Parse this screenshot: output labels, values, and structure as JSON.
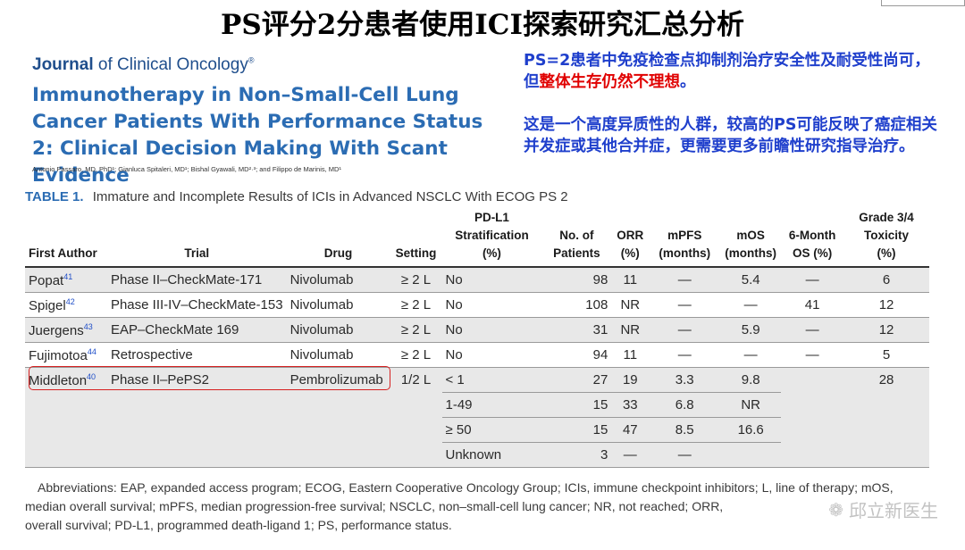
{
  "slide_title": "PS评分2分患者使用ICI探索研究汇总分析",
  "journal": {
    "name_part1": "Journal",
    "name_part2": "of Clinical Oncology",
    "mark": "®"
  },
  "paper_title": "Immunotherapy in Non–Small-Cell Lung Cancer Patients With Performance Status 2: Clinical Decision Making With Scant Evidence",
  "authors": "Antonio Passaro, MD, PhD¹; Gianluca Spitaleri, MD¹; Bishal Gyawali, MD²·³; and Filippo de Marinis, MD¹",
  "note1": {
    "part1": "PS=2患者中免疫检查点抑制剂治疗安全性及耐受性尚可，但",
    "highlight": "整体生存仍然不理想",
    "end": "。"
  },
  "note2": "这是一个高度异质性的人群，较高的PS可能反映了癌症相关并发症或其他合并症，更需要更多前瞻性研究指导治疗。",
  "table": {
    "caption_label": "TABLE 1.",
    "caption": "Immature and Incomplete Results of ICIs in Advanced NSCLC With ECOG PS 2",
    "headers": {
      "author": "First Author",
      "trial": "Trial",
      "drug": "Drug",
      "setting": "Setting",
      "pdl1_1": "PD-L1",
      "pdl1_2": "Stratification",
      "pdl1_3": "(%)",
      "patients_1": "No. of",
      "patients_2": "Patients",
      "orr_1": "ORR",
      "orr_2": "(%)",
      "mpfs_1": "mPFS",
      "mpfs_2": "(months)",
      "mos_1": "mOS",
      "mos_2": "(months)",
      "os6_1": "6-Month",
      "os6_2": "OS (%)",
      "tox_1": "Grade 3/4",
      "tox_2": "Toxicity",
      "tox_3": "(%)"
    },
    "rows": [
      {
        "author": "Popat",
        "ref": "41",
        "trial": "Phase II–CheckMate-171",
        "drug": "Nivolumab",
        "setting": "≥ 2 L",
        "pdl1": "No",
        "patients": "98",
        "orr": "11",
        "mpfs": "—",
        "mos": "5.4",
        "os6": "—",
        "tox": "6"
      },
      {
        "author": "Spigel",
        "ref": "42",
        "trial": "Phase III-IV–CheckMate-153",
        "drug": "Nivolumab",
        "setting": "≥ 2 L",
        "pdl1": "No",
        "patients": "108",
        "orr": "NR",
        "mpfs": "—",
        "mos": "—",
        "os6": "41",
        "tox": "12"
      },
      {
        "author": "Juergens",
        "ref": "43",
        "trial": "EAP–CheckMate 169",
        "drug": "Nivolumab",
        "setting": "≥ 2 L",
        "pdl1": "No",
        "patients": "31",
        "orr": "NR",
        "mpfs": "—",
        "mos": "5.9",
        "os6": "—",
        "tox": "12"
      },
      {
        "author": "Fujimotoa",
        "ref": "44",
        "trial": "Retrospective",
        "drug": "Nivolumab",
        "setting": "≥ 2 L",
        "pdl1": "No",
        "patients": "94",
        "orr": "11",
        "mpfs": "—",
        "mos": "—",
        "os6": "—",
        "tox": "5"
      },
      {
        "author": "Middleton",
        "ref": "40",
        "trial": "Phase II–PePS2",
        "drug": "Pembrolizumab",
        "setting": "1/2 L",
        "pdl1": "< 1",
        "patients": "27",
        "orr": "19",
        "mpfs": "3.3",
        "mos": "9.8",
        "os6": "",
        "tox": "28"
      },
      {
        "author": "",
        "ref": "",
        "trial": "",
        "drug": "",
        "setting": "",
        "pdl1": "1-49",
        "patients": "15",
        "orr": "33",
        "mpfs": "6.8",
        "mos": "NR",
        "os6": "",
        "tox": ""
      },
      {
        "author": "",
        "ref": "",
        "trial": "",
        "drug": "",
        "setting": "",
        "pdl1": "≥ 50",
        "patients": "15",
        "orr": "47",
        "mpfs": "8.5",
        "mos": "16.6",
        "os6": "",
        "tox": ""
      },
      {
        "author": "",
        "ref": "",
        "trial": "",
        "drug": "",
        "setting": "",
        "pdl1": "Unknown",
        "patients": "3",
        "orr": "—",
        "mpfs": "—",
        "mos": "",
        "os6": "",
        "tox": ""
      }
    ]
  },
  "abbreviations": {
    "line1": "Abbreviations: EAP, expanded access program; ECOG, Eastern Cooperative Oncology Group; ICIs, immune checkpoint inhibitors; L, line of therapy; mOS,",
    "line2": "median overall survival; mPFS, median progression-free survival; NSCLC, non–small-cell lung cancer; NR, not reached; ORR,",
    "line3": "overall survival; PD-L1, programmed death-ligand 1; PS, performance status."
  },
  "watermark": "邱立新医生",
  "colors": {
    "blue_note": "#1f3fcc",
    "red_note": "#e00000",
    "journal_blue": "#2b6cb3",
    "highlight_box": "#d62020"
  }
}
